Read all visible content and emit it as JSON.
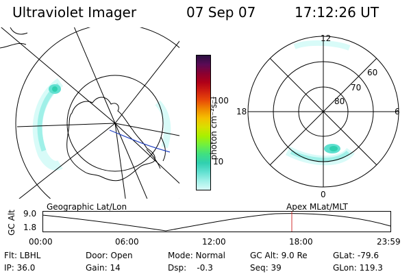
{
  "header": {
    "instrument": "Ultraviolet Imager",
    "date": "07 Sep 07",
    "time": "17:12:26 UT"
  },
  "colorbar": {
    "unit_label": "photon cm⁻²s⁻¹",
    "ticks": [
      "100",
      "10"
    ],
    "colors": [
      "#2a1040",
      "#5a0a55",
      "#8a0030",
      "#b00018",
      "#d02010",
      "#e84a08",
      "#f08a00",
      "#f4c000",
      "#d8e000",
      "#a8f000",
      "#70f040",
      "#40e080",
      "#30d0b0",
      "#60e0d0",
      "#a0f0e8",
      "#d8fbf8"
    ]
  },
  "left_map": {
    "label": "Geographic Lat/Lon"
  },
  "right_map": {
    "label": "Apex MLat/MLT",
    "mlt_labels": [
      "12",
      "18",
      "6",
      "0"
    ],
    "lat_labels": [
      "60",
      "70",
      "80"
    ]
  },
  "timeline": {
    "axis_label": "GC Alt",
    "y_ticks": [
      "9.0",
      "1.8"
    ],
    "x_ticks": [
      "00:00",
      "06:00",
      "12:00",
      "18:00",
      "23:59"
    ]
  },
  "info": {
    "filter": "Flt: LBHL",
    "ip": "IP: 36.0",
    "door": "Door: Open",
    "gain": "Gain: 14",
    "mode": "Mode: Normal",
    "dsp": "Dsp:    -0.3",
    "gc_alt": "GC Alt: 9.0 Re",
    "seq": "Seq: 39",
    "glat": "GLat: -79.6",
    "glon": "GLon: 119.3"
  }
}
